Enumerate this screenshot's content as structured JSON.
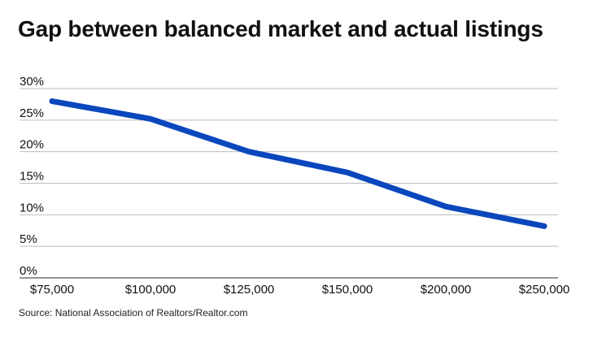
{
  "title": "Gap between balanced market and actual listings",
  "source": "Source: National Association of Realtors/Realtor.com",
  "chart_data": {
    "type": "line",
    "categories": [
      "$75,000",
      "$100,000",
      "$125,000",
      "$150,000",
      "$200,000",
      "$250,000"
    ],
    "series": [
      {
        "values": [
          28,
          25.2,
          20,
          16.7,
          11.3,
          8.2
        ],
        "color": "#0a47bd"
      }
    ],
    "yticks": [
      "0%",
      "5%",
      "10%",
      "15%",
      "20%",
      "25%",
      "30%"
    ],
    "ylim": [
      0,
      30
    ],
    "grid": true,
    "legend": "none"
  }
}
